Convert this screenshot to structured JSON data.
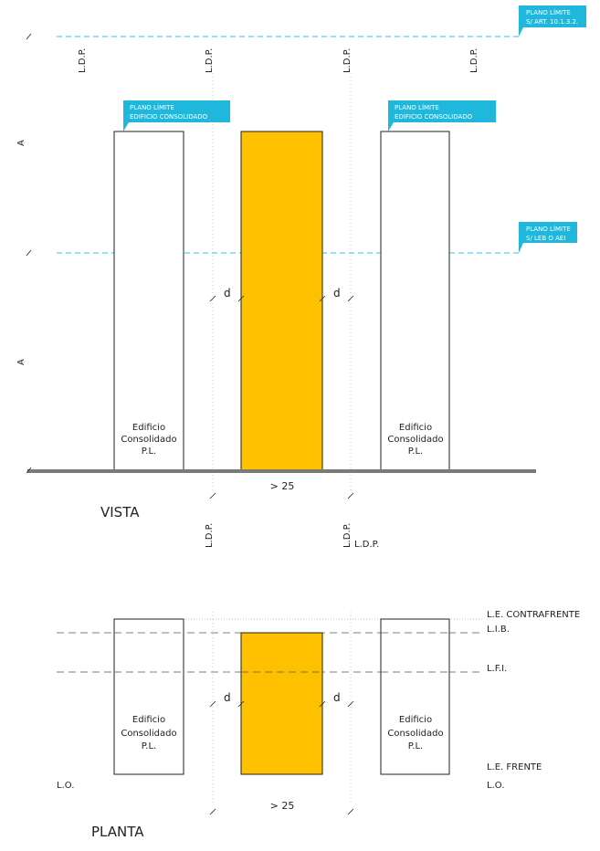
{
  "colors": {
    "highlight_building": "#FFC000",
    "callout": "#1FB8DC",
    "limit_line": "#2EC4E0",
    "ground": "#7A7A7A",
    "outline": "#222222",
    "dashed": "#555555"
  },
  "callouts": {
    "top_right": {
      "line1": "PLANO LÍMITE",
      "line2": "S/ ART. 10.1.3.2."
    },
    "left_building": {
      "line1": "PLANO LÍMITE",
      "line2": "EDIFICIO CONSOLIDADO"
    },
    "right_building": {
      "line1": "PLANO LÍMITE",
      "line2": "EDIFICIO CONSOLIDADO"
    },
    "mid_right": {
      "line1": "PLANO LÍMITE",
      "line2": "S/ LEB O AEI"
    }
  },
  "vista": {
    "title": "VISTA",
    "ldp_top": [
      "L.D.P.",
      "L.D.P.",
      "L.D.P.",
      "L.D.P."
    ],
    "ldp_bottom": [
      "L.D.P.",
      "L.D.P."
    ],
    "ldp_extra": "L.D.P.",
    "height_marks": [
      "A",
      "A"
    ],
    "d_left": "d",
    "d_right": "d",
    "width_label": "> 25",
    "building_left": {
      "line1": "Edificio",
      "line2": "Consolidado",
      "line3": "P.L."
    },
    "building_right": {
      "line1": "Edificio",
      "line2": "Consolidado",
      "line3": "P.L."
    }
  },
  "planta": {
    "title": "PLANTA",
    "le_contrafrente": "L.E. CONTRAFRENTE",
    "lib": "L.I.B.",
    "lfi": "L.F.I.",
    "le_frente": "L.E. FRENTE",
    "lo_left": "L.O.",
    "lo_right": "L.O.",
    "d_left": "d",
    "d_right": "d",
    "width_label": "> 25",
    "building_left": {
      "line1": "Edificio",
      "line2": "Consolidado",
      "line3": "P.L."
    },
    "building_right": {
      "line1": "Edificio",
      "line2": "Consolidado",
      "line3": "P.L."
    }
  }
}
